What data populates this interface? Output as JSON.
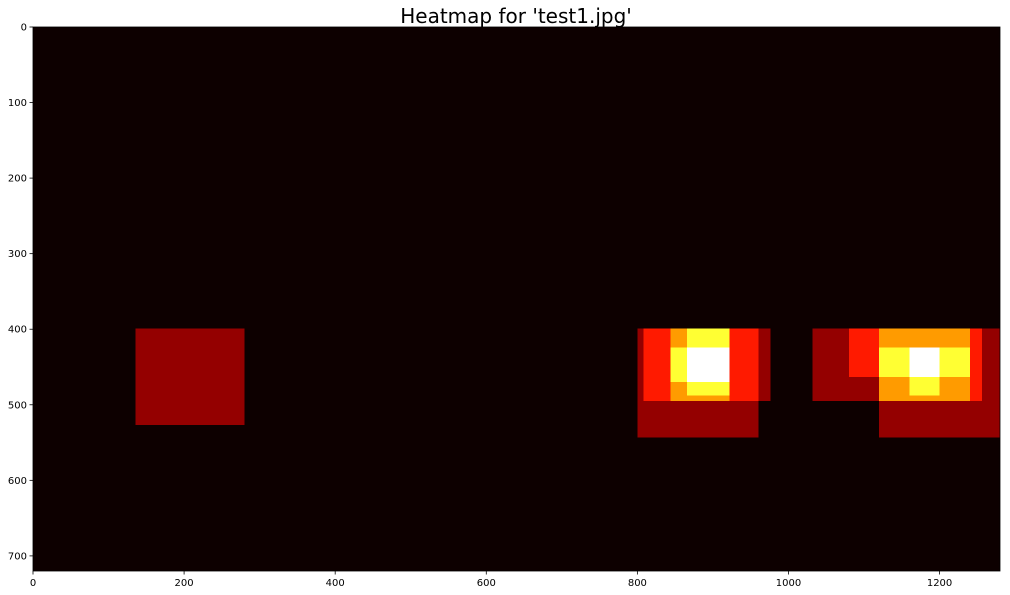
{
  "chart_data": {
    "type": "heatmap",
    "title": "Heatmap for 'test1.jpg'",
    "xlabel": "",
    "ylabel": "",
    "xlim": [
      0,
      1280
    ],
    "ylim": [
      720,
      0
    ],
    "xticks": [
      0,
      200,
      400,
      600,
      800,
      1000,
      1200
    ],
    "yticks": [
      0,
      100,
      200,
      300,
      400,
      500,
      600,
      700
    ],
    "colormap": "hot",
    "colors": {
      "background": "#0d0000",
      "level_1": "#940000",
      "level_2": "#ff1a00",
      "level_3": "#ff9b00",
      "level_4": "#ffff33",
      "level_5": "#ffffff"
    },
    "grid": false,
    "regions": [
      {
        "x": [
          136,
          280
        ],
        "y": [
          399,
          527
        ],
        "level": 1
      },
      {
        "x": [
          800,
          960
        ],
        "y": [
          495,
          543
        ],
        "level": 1
      },
      {
        "x": [
          960,
          976
        ],
        "y": [
          399,
          495
        ],
        "level": 1
      },
      {
        "x": [
          800,
          808
        ],
        "y": [
          399,
          495
        ],
        "level": 1
      },
      {
        "x": [
          808,
          844
        ],
        "y": [
          399,
          495
        ],
        "level": 2
      },
      {
        "x": [
          922,
          960
        ],
        "y": [
          399,
          495
        ],
        "level": 2
      },
      {
        "x": [
          844,
          922
        ],
        "y": [
          399,
          495
        ],
        "level": 3
      },
      {
        "x": [
          844,
          866
        ],
        "y": [
          424,
          470
        ],
        "level": 4
      },
      {
        "x": [
          866,
          922
        ],
        "y": [
          399,
          424
        ],
        "level": 4
      },
      {
        "x": [
          866,
          922
        ],
        "y": [
          470,
          488
        ],
        "level": 4
      },
      {
        "x": [
          866,
          922
        ],
        "y": [
          424,
          470
        ],
        "level": 5
      },
      {
        "x": [
          1032,
          1080
        ],
        "y": [
          399,
          495
        ],
        "level": 1
      },
      {
        "x": [
          1080,
          1120
        ],
        "y": [
          463,
          495
        ],
        "level": 1
      },
      {
        "x": [
          1120,
          1256
        ],
        "y": [
          495,
          543
        ],
        "level": 1
      },
      {
        "x": [
          1256,
          1280
        ],
        "y": [
          399,
          543
        ],
        "level": 1
      },
      {
        "x": [
          1080,
          1120
        ],
        "y": [
          399,
          463
        ],
        "level": 2
      },
      {
        "x": [
          1240,
          1256
        ],
        "y": [
          399,
          495
        ],
        "level": 2
      },
      {
        "x": [
          1120,
          1240
        ],
        "y": [
          399,
          495
        ],
        "level": 3
      },
      {
        "x": [
          1120,
          1160
        ],
        "y": [
          424,
          463
        ],
        "level": 4
      },
      {
        "x": [
          1200,
          1240
        ],
        "y": [
          424,
          463
        ],
        "level": 4
      },
      {
        "x": [
          1160,
          1200
        ],
        "y": [
          463,
          488
        ],
        "level": 4
      },
      {
        "x": [
          1160,
          1200
        ],
        "y": [
          424,
          463
        ],
        "level": 5
      }
    ]
  }
}
